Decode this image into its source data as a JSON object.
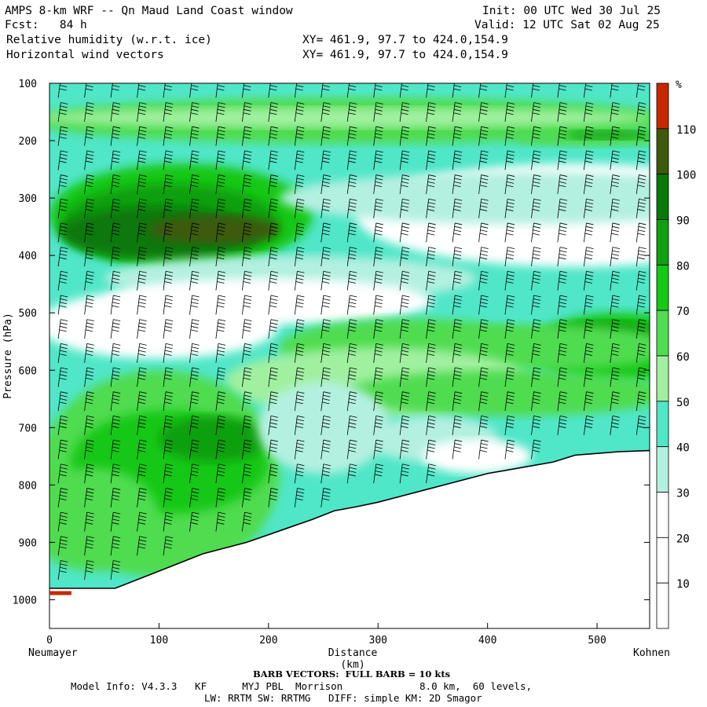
{
  "header": {
    "title_left": "AMPS 8-km WRF -- Qn Maud Land Coast window",
    "fcst": "Fcst:   84 h",
    "field1": "Relative humidity (w.r.t. ice)",
    "field2": "Horizontal wind vectors",
    "xy1": "XY= 461.9, 97.7 to 424.0,154.9",
    "xy2": "XY= 461.9, 97.7 to 424.0,154.9",
    "init": "Init: 00 UTC Wed 30 Jul 25",
    "valid": "Valid: 12 UTC Sat 02 Aug 25"
  },
  "chart_data": {
    "type": "heatmap",
    "xlabel": "Distance (km)",
    "ylabel": "Pressure (hPa)",
    "xlim": [
      0,
      548
    ],
    "ylim": [
      1050,
      100
    ],
    "x_ticks": [
      0,
      100,
      200,
      300,
      400,
      500
    ],
    "y_ticks": [
      100,
      200,
      300,
      400,
      500,
      600,
      700,
      800,
      900,
      1000
    ],
    "start_label": "Neumayer",
    "end_label": "Kohnen",
    "colorbar": {
      "unit": "%",
      "levels": [
        10,
        20,
        30,
        40,
        50,
        60,
        70,
        80,
        90,
        100,
        110
      ],
      "colors": [
        "#ffffff",
        "#ffffff",
        "#ffffff",
        "#b4f0e0",
        "#50e6c8",
        "#a0f0a0",
        "#50dc50",
        "#14c814",
        "#10a010",
        "#087808",
        "#3c5a0a",
        "#c82800"
      ]
    },
    "terrain": [
      [
        0,
        980
      ],
      [
        60,
        980
      ],
      [
        100,
        950
      ],
      [
        140,
        920
      ],
      [
        180,
        900
      ],
      [
        210,
        880
      ],
      [
        240,
        860
      ],
      [
        260,
        845
      ],
      [
        280,
        838
      ],
      [
        300,
        830
      ],
      [
        320,
        820
      ],
      [
        340,
        810
      ],
      [
        370,
        795
      ],
      [
        400,
        780
      ],
      [
        430,
        770
      ],
      [
        460,
        760
      ],
      [
        480,
        748
      ],
      [
        500,
        745
      ],
      [
        520,
        742
      ],
      [
        548,
        740
      ]
    ],
    "footer": {
      "barb_note": "BARB VECTORS:  FULL BARB = 10 kts",
      "model_info": "Model Info: V4.3.3   KF      MYJ PBL  Morrison             8.0 km,  60 levels,",
      "physics": "LW: RRTM SW: RRTMG   DIFF: simple KM: 2D Smagor"
    }
  }
}
